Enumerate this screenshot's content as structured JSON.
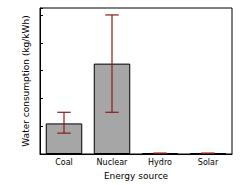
{
  "chart_data": {
    "type": "bar",
    "categories": [
      "Coal",
      "Nuclear",
      "Hydro",
      "Solar"
    ],
    "values": [
      22,
      65,
      0.5,
      0.5
    ],
    "error_low": [
      15,
      30,
      0.5,
      0.5
    ],
    "error_high": [
      30,
      100,
      0.5,
      0.5
    ],
    "color": "#a6a6a6",
    "xlabel": "Energy source",
    "ylabel": "Water consumption (kg/kWh)",
    "ylim": [
      0,
      105
    ],
    "yticks": [
      0,
      20,
      40,
      60,
      80,
      100
    ],
    "grid": false,
    "tick_labels": "x"
  }
}
